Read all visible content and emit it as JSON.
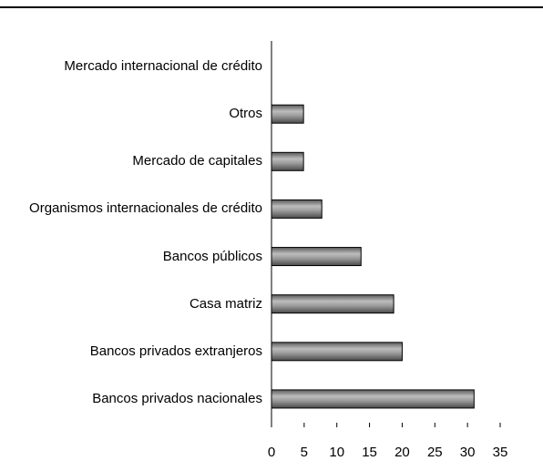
{
  "chart_data": {
    "type": "bar",
    "orientation": "horizontal",
    "categories": [
      "Mercado internacional de crédito",
      "Otros",
      "Mercado de capitales",
      "Organismos internacionales de crédito",
      "Bancos públicos",
      "Casa matriz",
      "Bancos privados extranjeros",
      "Bancos privados nacionales"
    ],
    "values": [
      0,
      4.9,
      4.9,
      7.7,
      13.7,
      18.7,
      20,
      31
    ],
    "color": "#7a7a7a",
    "xlim": [
      0,
      35
    ],
    "xticks": [
      0,
      5,
      10,
      15,
      20,
      25,
      30,
      35
    ],
    "grid": false
  }
}
